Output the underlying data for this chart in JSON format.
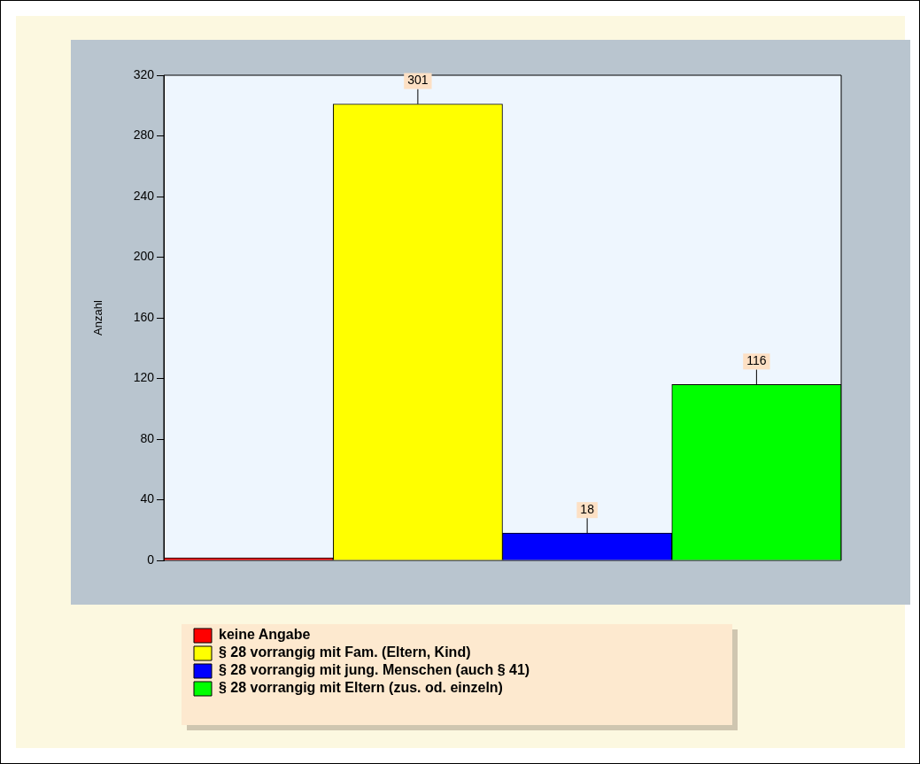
{
  "chart_data": {
    "type": "bar",
    "ylabel": "Anzahl",
    "categories": [
      null
    ],
    "series": [
      {
        "name": "keine Angabe",
        "color": "#ff0000",
        "values": [
          0
        ],
        "value_labels": [
          null
        ]
      },
      {
        "name": "§ 28 vorrangig mit Fam. (Eltern, Kind)",
        "color": "#ffff00",
        "values": [
          301
        ],
        "value_labels": [
          "301"
        ]
      },
      {
        "name": "§ 28 vorrangig mit jung. Menschen (auch § 41)",
        "color": "#0000ff",
        "values": [
          18
        ],
        "value_labels": [
          "18"
        ]
      },
      {
        "name": "§ 28 vorrangig mit Eltern (zus. od. einzeln)",
        "color": "#00ff00",
        "values": [
          116
        ],
        "value_labels": [
          "116"
        ]
      }
    ],
    "ylim": [
      0,
      320
    ],
    "yticks": [
      0,
      40,
      80,
      120,
      160,
      200,
      240,
      280,
      320
    ],
    "legend": "bottom"
  }
}
